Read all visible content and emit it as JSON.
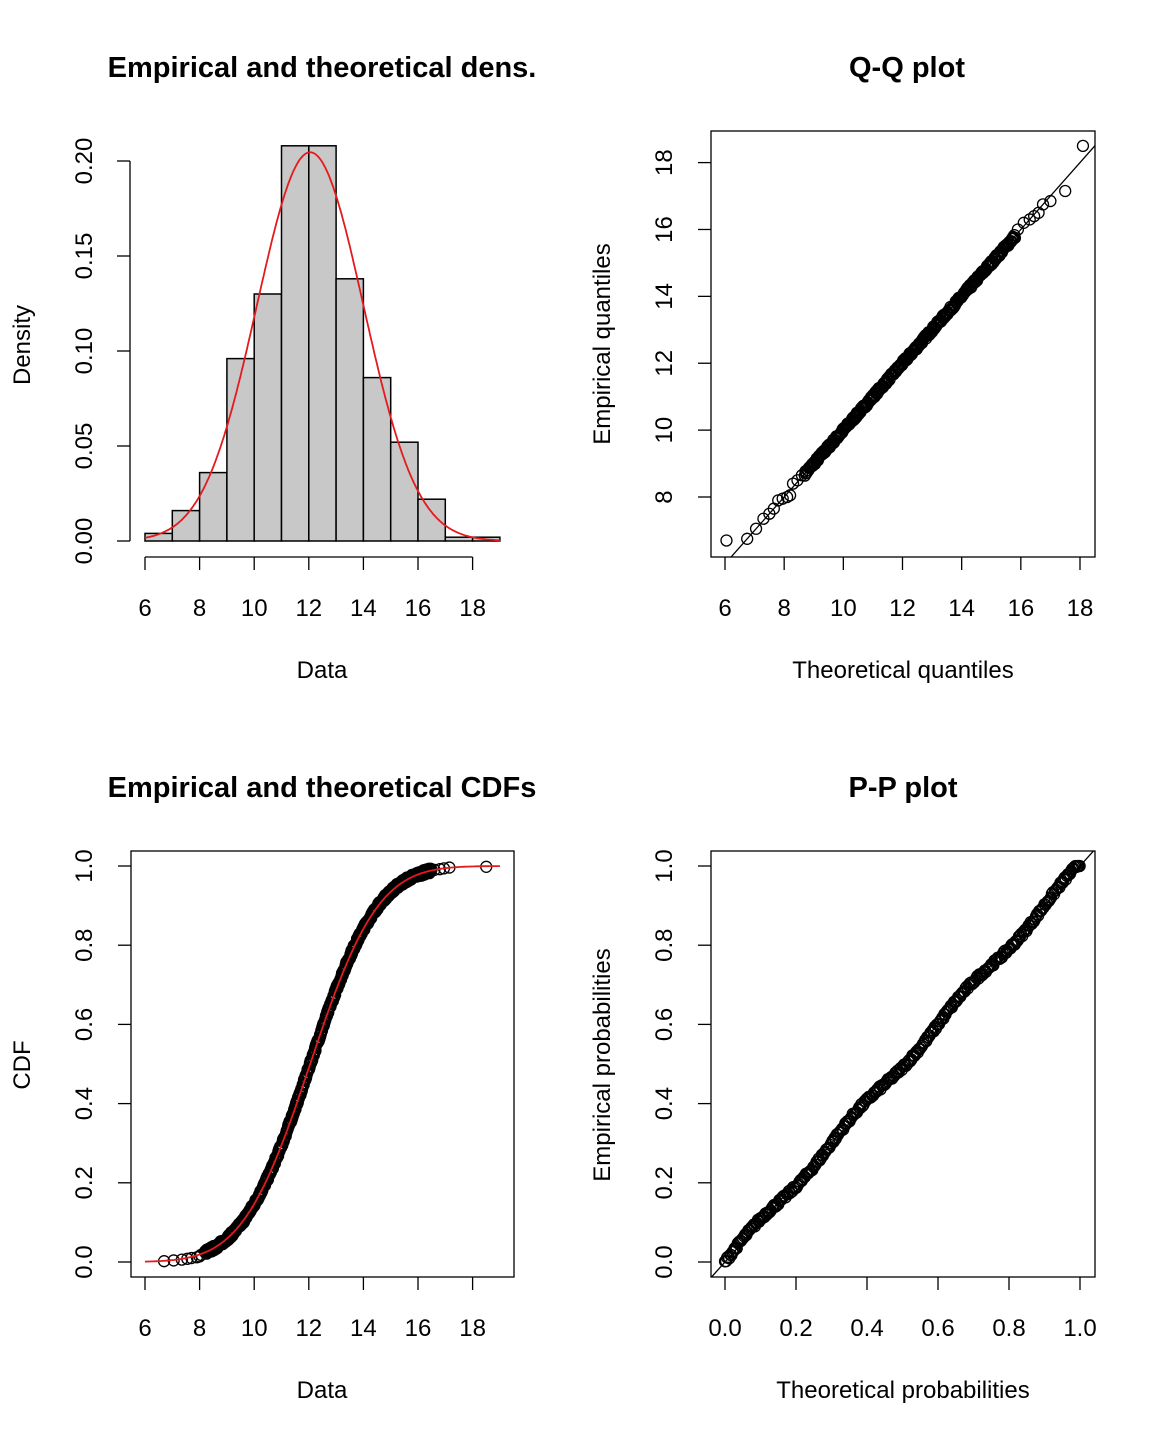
{
  "chart_data": [
    {
      "type": "bar",
      "title": "Empirical and theoretical dens.",
      "xlabel": "Data",
      "ylabel": "Density",
      "xlim": [
        6,
        19
      ],
      "ylim": [
        0,
        0.2
      ],
      "xticks": [
        "6",
        "8",
        "10",
        "12",
        "14",
        "16",
        "18"
      ],
      "yticks": [
        "0.00",
        "0.05",
        "0.10",
        "0.15",
        "0.20"
      ],
      "bins": [
        [
          6,
          7
        ],
        [
          7,
          8
        ],
        [
          8,
          9
        ],
        [
          9,
          10
        ],
        [
          10,
          11
        ],
        [
          11,
          12
        ],
        [
          12,
          13
        ],
        [
          13,
          14
        ],
        [
          14,
          15
        ],
        [
          15,
          16
        ],
        [
          16,
          17
        ],
        [
          17,
          18
        ],
        [
          18,
          19
        ]
      ],
      "values": [
        0.004,
        0.016,
        0.036,
        0.096,
        0.13,
        0.208,
        0.208,
        0.138,
        0.086,
        0.052,
        0.022,
        0.002,
        0.002
      ],
      "bar_color": "#c8c8c8",
      "density_curve": {
        "mean": 12.05,
        "sd": 1.95,
        "color": "#e41a1c"
      }
    },
    {
      "type": "scatter",
      "title": "Q-Q plot",
      "xlabel": "Theoretical quantiles",
      "ylabel": "Empirical quantiles",
      "xlim": [
        6,
        18.5
      ],
      "ylim": [
        6.7,
        18.5
      ],
      "xticks": [
        "6",
        "8",
        "10",
        "12",
        "14",
        "16",
        "18"
      ],
      "yticks": [
        "8",
        "10",
        "12",
        "14",
        "16",
        "18"
      ],
      "points": [
        [
          6.05,
          6.7
        ],
        [
          6.75,
          6.75
        ],
        [
          7.05,
          7.05
        ],
        [
          7.3,
          7.35
        ],
        [
          7.5,
          7.5
        ],
        [
          7.65,
          7.65
        ],
        [
          7.8,
          7.9
        ],
        [
          7.95,
          7.95
        ],
        [
          8.1,
          8.0
        ],
        [
          8.2,
          8.05
        ],
        [
          8.3,
          8.4
        ],
        [
          8.45,
          8.5
        ],
        [
          8.6,
          8.65
        ],
        [
          15.9,
          16.0
        ],
        [
          16.1,
          16.2
        ],
        [
          16.3,
          16.3
        ],
        [
          16.45,
          16.4
        ],
        [
          16.6,
          16.5
        ],
        [
          16.75,
          16.75
        ],
        [
          17.0,
          16.85
        ],
        [
          17.5,
          17.15
        ],
        [
          18.1,
          18.5
        ]
      ],
      "body_range": [
        8.7,
        15.8
      ],
      "reference_line": "y = x"
    },
    {
      "type": "line",
      "title": "Empirical and theoretical CDFs",
      "xlabel": "Data",
      "ylabel": "CDF",
      "xlim": [
        6,
        19
      ],
      "ylim": [
        0,
        1
      ],
      "xticks": [
        "6",
        "8",
        "10",
        "12",
        "14",
        "16",
        "18"
      ],
      "yticks": [
        "0.0",
        "0.2",
        "0.4",
        "0.6",
        "0.8",
        "1.0"
      ],
      "empirical_points": [
        [
          6.7,
          0.002
        ],
        [
          7.05,
          0.004
        ],
        [
          7.35,
          0.006
        ],
        [
          7.55,
          0.008
        ],
        [
          7.7,
          0.01
        ],
        [
          7.9,
          0.012
        ],
        [
          8.0,
          0.014
        ],
        [
          8.05,
          0.018
        ],
        [
          16.6,
          0.99
        ],
        [
          16.8,
          0.992
        ],
        [
          16.95,
          0.994
        ],
        [
          17.15,
          0.996
        ],
        [
          18.5,
          0.998
        ]
      ],
      "body_range": [
        8.2,
        16.5
      ],
      "theoretical_curve": {
        "mean": 12.05,
        "sd": 1.95,
        "color": "#e41a1c"
      }
    },
    {
      "type": "scatter",
      "title": "P-P plot",
      "xlabel": "Theoretical probabilities",
      "ylabel": "Empirical probabilities",
      "xlim": [
        0,
        1
      ],
      "ylim": [
        0,
        1
      ],
      "xticks": [
        "0.0",
        "0.2",
        "0.4",
        "0.6",
        "0.8",
        "1.0"
      ],
      "yticks": [
        "0.0",
        "0.2",
        "0.4",
        "0.6",
        "0.8",
        "1.0"
      ],
      "points_range": [
        0,
        1
      ],
      "reference_line": "y = x"
    }
  ]
}
